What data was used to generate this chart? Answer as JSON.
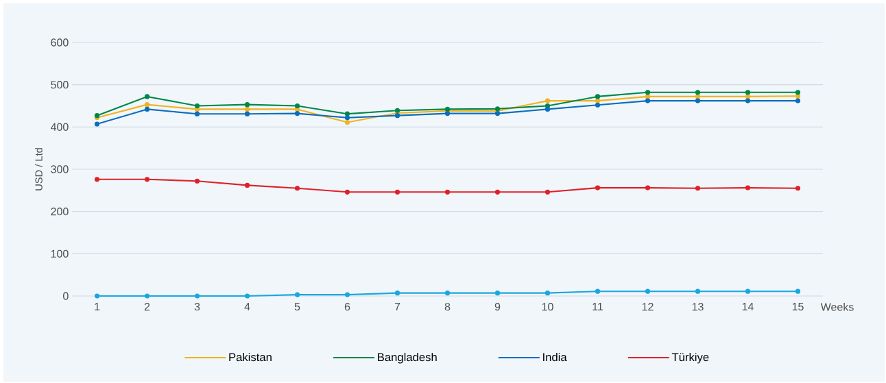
{
  "chart_data": {
    "type": "line",
    "xlabel": "Weeks",
    "ylabel": "USD / Ltd",
    "categories": [
      "1",
      "2",
      "3",
      "4",
      "5",
      "6",
      "7",
      "8",
      "9",
      "10",
      "11",
      "12",
      "13",
      "14",
      "15"
    ],
    "series": [
      {
        "name": "Pakistan",
        "color": "#f0b323",
        "values": [
          422,
          453,
          442,
          442,
          442,
          411,
          433,
          438,
          438,
          462,
          462,
          472,
          472,
          472,
          473
        ]
      },
      {
        "name": "Bangladesh",
        "color": "#00874a",
        "values": [
          427,
          472,
          450,
          453,
          450,
          431,
          439,
          442,
          443,
          450,
          472,
          482,
          482,
          482,
          482
        ]
      },
      {
        "name": "India",
        "color": "#0a6ebd",
        "values": [
          407,
          442,
          431,
          431,
          432,
          422,
          427,
          432,
          432,
          442,
          452,
          462,
          462,
          462,
          462
        ]
      },
      {
        "name": "Türkiye",
        "color": "#e0202a",
        "values": [
          276,
          276,
          272,
          262,
          255,
          246,
          246,
          246,
          246,
          246,
          256,
          256,
          255,
          256,
          255
        ]
      },
      {
        "color": "#18a8e0",
        "values": [
          0,
          0,
          0,
          0,
          3,
          3,
          7,
          7,
          7,
          7,
          11,
          11,
          11,
          11,
          11
        ]
      }
    ],
    "ylim": [
      0,
      600
    ],
    "yticks": [
      0,
      100,
      200,
      300,
      400,
      500,
      600
    ],
    "grid": "y",
    "legend": "bottom",
    "marker": "circle",
    "line_style": "solid"
  }
}
